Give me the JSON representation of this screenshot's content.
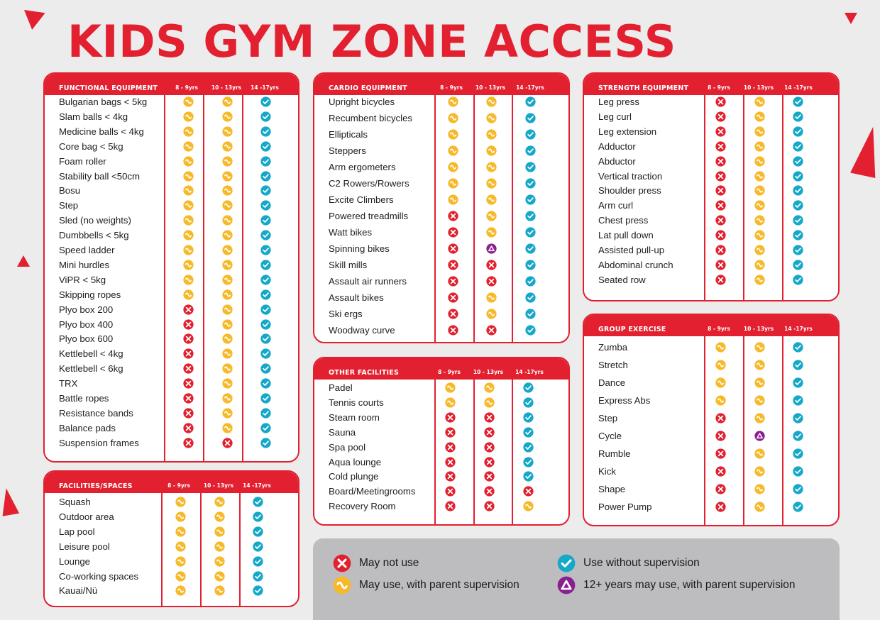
{
  "title": "KIDS GYM ZONE ACCESS",
  "colors": {
    "red": "#e2202f",
    "amber": "#f7b928",
    "teal": "#15a8c8",
    "purple": "#8a1f8f"
  },
  "icons": {
    "x": "no-icon",
    "s": "supervised-icon",
    "c": "allowed-icon",
    "t": "teen-supervised-icon"
  },
  "age_headers": [
    "8 - 9yrs",
    "10 - 13yrs",
    "14 -17yrs"
  ],
  "panels": [
    {
      "id": "functional",
      "title": "FUNCTIONAL EQUIPMENT",
      "rows": [
        {
          "label": "Bulgarian bags < 5kg",
          "v": [
            "s",
            "s",
            "c"
          ]
        },
        {
          "label": "Slam balls < 4kg",
          "v": [
            "s",
            "s",
            "c"
          ]
        },
        {
          "label": "Medicine balls < 4kg",
          "v": [
            "s",
            "s",
            "c"
          ]
        },
        {
          "label": "Core bag  < 5kg",
          "v": [
            "s",
            "s",
            "c"
          ]
        },
        {
          "label": "Foam roller",
          "v": [
            "s",
            "s",
            "c"
          ]
        },
        {
          "label": "Stability ball <50cm",
          "v": [
            "s",
            "s",
            "c"
          ]
        },
        {
          "label": "Bosu",
          "v": [
            "s",
            "s",
            "c"
          ]
        },
        {
          "label": "Step",
          "v": [
            "s",
            "s",
            "c"
          ]
        },
        {
          "label": "Sled (no weights)",
          "v": [
            "s",
            "s",
            "c"
          ]
        },
        {
          "label": "Dumbbells < 5kg",
          "v": [
            "s",
            "s",
            "c"
          ]
        },
        {
          "label": "Speed ladder",
          "v": [
            "s",
            "s",
            "c"
          ]
        },
        {
          "label": "Mini hurdles",
          "v": [
            "s",
            "s",
            "c"
          ]
        },
        {
          "label": "ViPR < 5kg",
          "v": [
            "s",
            "s",
            "c"
          ]
        },
        {
          "label": "Skipping ropes",
          "v": [
            "s",
            "s",
            "c"
          ]
        },
        {
          "label": "Plyo box 200",
          "v": [
            "x",
            "s",
            "c"
          ]
        },
        {
          "label": "Plyo box 400",
          "v": [
            "x",
            "s",
            "c"
          ]
        },
        {
          "label": "Plyo box 600",
          "v": [
            "x",
            "s",
            "c"
          ]
        },
        {
          "label": "Kettlebell < 4kg",
          "v": [
            "x",
            "s",
            "c"
          ]
        },
        {
          "label": "Kettlebell  < 6kg",
          "v": [
            "x",
            "s",
            "c"
          ]
        },
        {
          "label": "TRX",
          "v": [
            "x",
            "s",
            "c"
          ]
        },
        {
          "label": "Battle ropes",
          "v": [
            "x",
            "s",
            "c"
          ]
        },
        {
          "label": "Resistance bands",
          "v": [
            "x",
            "s",
            "c"
          ]
        },
        {
          "label": "Balance pads",
          "v": [
            "x",
            "s",
            "c"
          ]
        },
        {
          "label": "Suspension frames",
          "v": [
            "x",
            "x",
            "c"
          ]
        }
      ]
    },
    {
      "id": "facilities",
      "title": "FACILITIES/SPACES",
      "rows": [
        {
          "label": "Squash",
          "v": [
            "s",
            "s",
            "c"
          ]
        },
        {
          "label": "Outdoor area",
          "v": [
            "s",
            "s",
            "c"
          ]
        },
        {
          "label": "Lap pool",
          "v": [
            "s",
            "s",
            "c"
          ]
        },
        {
          "label": "Leisure pool",
          "v": [
            "s",
            "s",
            "c"
          ]
        },
        {
          "label": "Lounge",
          "v": [
            "s",
            "s",
            "c"
          ]
        },
        {
          "label": "Co-working spaces",
          "v": [
            "s",
            "s",
            "c"
          ]
        },
        {
          "label": "Kauai/Nü",
          "v": [
            "s",
            "s",
            "c"
          ]
        }
      ]
    },
    {
      "id": "cardio",
      "title": "CARDIO EQUIPMENT",
      "rows": [
        {
          "label": "Upright bicycles",
          "v": [
            "s",
            "s",
            "c"
          ]
        },
        {
          "label": "Recumbent bicycles",
          "v": [
            "s",
            "s",
            "c"
          ]
        },
        {
          "label": "Ellipticals",
          "v": [
            "s",
            "s",
            "c"
          ]
        },
        {
          "label": "Steppers",
          "v": [
            "s",
            "s",
            "c"
          ]
        },
        {
          "label": "Arm ergometers",
          "v": [
            "s",
            "s",
            "c"
          ]
        },
        {
          "label": "C2 Rowers/Rowers",
          "v": [
            "s",
            "s",
            "c"
          ]
        },
        {
          "label": "Excite Climbers",
          "v": [
            "s",
            "s",
            "c"
          ]
        },
        {
          "label": "Powered treadmills",
          "v": [
            "x",
            "s",
            "c"
          ]
        },
        {
          "label": "Watt bikes",
          "v": [
            "x",
            "s",
            "c"
          ]
        },
        {
          "label": "Spinning bikes",
          "v": [
            "x",
            "t",
            "c"
          ]
        },
        {
          "label": "Skill mills",
          "v": [
            "x",
            "x",
            "c"
          ]
        },
        {
          "label": "Assault air runners",
          "v": [
            "x",
            "x",
            "c"
          ]
        },
        {
          "label": "Assault bikes",
          "v": [
            "x",
            "s",
            "c"
          ]
        },
        {
          "label": "Ski ergs",
          "v": [
            "x",
            "s",
            "c"
          ]
        },
        {
          "label": "Woodway curve",
          "v": [
            "x",
            "x",
            "c"
          ]
        }
      ]
    },
    {
      "id": "other",
      "title": "OTHER FACILITIES",
      "rows": [
        {
          "label": "Padel",
          "v": [
            "s",
            "s",
            "c"
          ]
        },
        {
          "label": "Tennis courts",
          "v": [
            "s",
            "s",
            "c"
          ]
        },
        {
          "label": "Steam room",
          "v": [
            "x",
            "x",
            "c"
          ]
        },
        {
          "label": "Sauna",
          "v": [
            "x",
            "x",
            "c"
          ]
        },
        {
          "label": "Spa pool",
          "v": [
            "x",
            "x",
            "c"
          ]
        },
        {
          "label": "Aqua lounge",
          "v": [
            "x",
            "x",
            "c"
          ]
        },
        {
          "label": "Cold plunge",
          "v": [
            "x",
            "x",
            "c"
          ]
        },
        {
          "label": "Board/Meetingrooms",
          "v": [
            "x",
            "x",
            "x"
          ]
        },
        {
          "label": "Recovery Room",
          "v": [
            "x",
            "x",
            "s"
          ]
        }
      ]
    },
    {
      "id": "strength",
      "title": "STRENGTH EQUIPMENT",
      "rows": [
        {
          "label": "Leg press",
          "v": [
            "x",
            "s",
            "c"
          ]
        },
        {
          "label": "Leg curl",
          "v": [
            "x",
            "s",
            "c"
          ]
        },
        {
          "label": "Leg extension",
          "v": [
            "x",
            "s",
            "c"
          ]
        },
        {
          "label": "Adductor",
          "v": [
            "x",
            "s",
            "c"
          ]
        },
        {
          "label": "Abductor",
          "v": [
            "x",
            "s",
            "c"
          ]
        },
        {
          "label": "Vertical traction",
          "v": [
            "x",
            "s",
            "c"
          ]
        },
        {
          "label": "Shoulder press",
          "v": [
            "x",
            "s",
            "c"
          ]
        },
        {
          "label": "Arm curl",
          "v": [
            "x",
            "s",
            "c"
          ]
        },
        {
          "label": "Chest press",
          "v": [
            "x",
            "s",
            "c"
          ]
        },
        {
          "label": "Lat pull down",
          "v": [
            "x",
            "s",
            "c"
          ]
        },
        {
          "label": "Assisted pull-up",
          "v": [
            "x",
            "s",
            "c"
          ]
        },
        {
          "label": "Abdominal crunch",
          "v": [
            "x",
            "s",
            "c"
          ]
        },
        {
          "label": "Seated row",
          "v": [
            "x",
            "s",
            "c"
          ]
        }
      ]
    },
    {
      "id": "group",
      "title": "GROUP EXERCISE",
      "rows": [
        {
          "label": "Zumba",
          "v": [
            "s",
            "s",
            "c"
          ]
        },
        {
          "label": "Stretch",
          "v": [
            "s",
            "s",
            "c"
          ]
        },
        {
          "label": "Dance",
          "v": [
            "s",
            "s",
            "c"
          ]
        },
        {
          "label": "Express Abs",
          "v": [
            "s",
            "s",
            "c"
          ]
        },
        {
          "label": "Step",
          "v": [
            "x",
            "s",
            "c"
          ]
        },
        {
          "label": "Cycle",
          "v": [
            "x",
            "t",
            "c"
          ]
        },
        {
          "label": "Rumble",
          "v": [
            "x",
            "s",
            "c"
          ]
        },
        {
          "label": "Kick",
          "v": [
            "x",
            "s",
            "c"
          ]
        },
        {
          "label": "Shape",
          "v": [
            "x",
            "s",
            "c"
          ]
        },
        {
          "label": "Power Pump",
          "v": [
            "x",
            "s",
            "c"
          ]
        }
      ]
    }
  ],
  "legend": [
    {
      "icon": "x",
      "text": "May not use"
    },
    {
      "icon": "s",
      "text": "May use, with parent supervision"
    },
    {
      "icon": "c",
      "text": "Use without supervision"
    },
    {
      "icon": "t",
      "text": "12+ years may use, with parent supervision"
    }
  ]
}
